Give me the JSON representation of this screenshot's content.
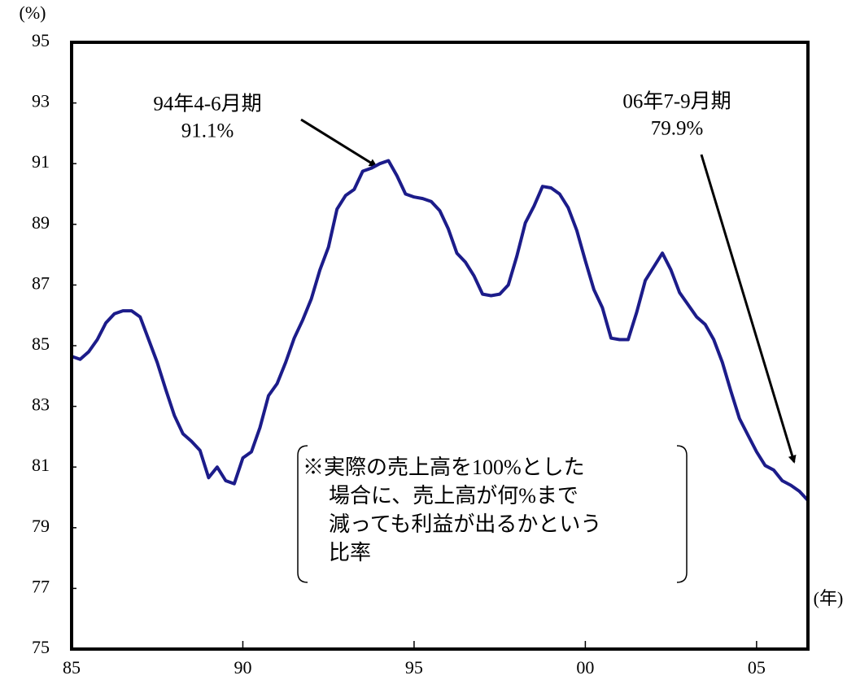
{
  "chart_data": {
    "type": "line",
    "y_label": "(%)",
    "x_label": "(年)",
    "annotations": [
      {
        "text": "94年4-6月期",
        "value_text": "91.1%"
      },
      {
        "text": "06年7-9月期",
        "value_text": "79.9%"
      }
    ],
    "note": [
      "※実際の売上高を100%とした",
      "場合に、売上高が何%まで",
      "減っても利益が出るかという",
      "比率"
    ],
    "x": [
      1985,
      1985.25,
      1985.5,
      1985.75,
      1986,
      1986.25,
      1986.5,
      1986.75,
      1987,
      1987.25,
      1987.5,
      1987.75,
      1988,
      1988.25,
      1988.5,
      1988.75,
      1989,
      1989.25,
      1989.5,
      1989.75,
      1990,
      1990.25,
      1990.5,
      1990.75,
      1991,
      1991.25,
      1991.5,
      1991.75,
      1992,
      1992.25,
      1992.5,
      1992.75,
      1993,
      1993.25,
      1993.5,
      1993.75,
      1994,
      1994.25,
      1994.5,
      1994.75,
      1995,
      1995.25,
      1995.5,
      1995.75,
      1996,
      1996.25,
      1996.5,
      1996.75,
      1997,
      1997.25,
      1997.5,
      1997.75,
      1998,
      1998.25,
      1998.5,
      1998.75,
      1999,
      1999.25,
      1999.5,
      1999.75,
      2000,
      2000.25,
      2000.5,
      2000.75,
      2001,
      2001.25,
      2001.5,
      2001.75,
      2002,
      2002.25,
      2002.5,
      2002.75,
      2003,
      2003.25,
      2003.5,
      2003.75,
      2004,
      2004.25,
      2004.5,
      2004.75,
      2005,
      2005.25,
      2005.5,
      2005.75,
      2006,
      2006.25,
      2006.5
    ],
    "series": [
      {
        "color": "#1c1c8a",
        "values": [
          84.65,
          84.55,
          84.8,
          85.2,
          85.75,
          86.05,
          86.15,
          86.15,
          85.95,
          85.2,
          84.45,
          83.55,
          82.7,
          82.1,
          81.85,
          81.55,
          80.65,
          81.0,
          80.55,
          80.45,
          81.3,
          81.5,
          82.3,
          83.35,
          83.75,
          84.45,
          85.25,
          85.85,
          86.55,
          87.5,
          88.25,
          89.5,
          89.95,
          90.15,
          90.75,
          90.85,
          91.0,
          91.1,
          90.6,
          90.0,
          89.9,
          89.85,
          89.75,
          89.45,
          88.85,
          88.05,
          87.75,
          87.3,
          86.7,
          86.65,
          86.7,
          87.0,
          87.95,
          89.05,
          89.6,
          90.25,
          90.2,
          90.0,
          89.55,
          88.8,
          87.8,
          86.85,
          86.25,
          85.25,
          85.2,
          85.2,
          86.1,
          87.15,
          87.6,
          88.05,
          87.5,
          86.75,
          86.35,
          85.95,
          85.7,
          85.2,
          84.45,
          83.5,
          82.6,
          82.05,
          81.5,
          81.05,
          80.9,
          80.55,
          80.4,
          80.2,
          79.9
        ]
      }
    ],
    "xlim": [
      1985,
      2006.5
    ],
    "xticks": [
      {
        "value": 1985,
        "label": "85"
      },
      {
        "value": 1990,
        "label": "90"
      },
      {
        "value": 1995,
        "label": "95"
      },
      {
        "value": 2000,
        "label": "00"
      },
      {
        "value": 2005,
        "label": "05"
      }
    ],
    "ylim": [
      75,
      95
    ],
    "yticks": [
      75,
      77,
      79,
      81,
      83,
      85,
      87,
      89,
      91,
      93,
      95
    ]
  }
}
